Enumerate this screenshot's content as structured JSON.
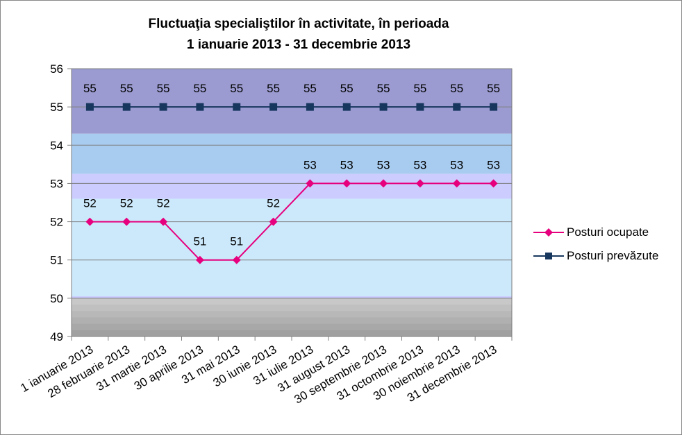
{
  "chart_data": {
    "type": "line",
    "title": "Fluctuaţia specialiştilor în activitate, în perioada",
    "subtitle": "1 ianuarie 2013 - 31 decembrie 2013",
    "categories": [
      "1 ianuarie 2013",
      "28 februarie 2013",
      "31 martie 2013",
      "30 aprilie 2013",
      "31 mai 2013",
      "30 iunie 2013",
      "31 iulie 2013",
      "31 august 2013",
      "30 septembrie 2013",
      "31 octombrie 2013",
      "30 noiembrie 2013",
      "31 decembrie 2013"
    ],
    "series": [
      {
        "name": "Posturi ocupate",
        "values": [
          52,
          52,
          52,
          51,
          51,
          52,
          53,
          53,
          53,
          53,
          53,
          53
        ],
        "color": "#e6007e",
        "marker": "diamond"
      },
      {
        "name": "Posturi prevăzute",
        "values": [
          55,
          55,
          55,
          55,
          55,
          55,
          55,
          55,
          55,
          55,
          55,
          55
        ],
        "color": "#17375e",
        "marker": "square"
      }
    ],
    "ylim": [
      49,
      56
    ],
    "yticks": [
      49,
      50,
      51,
      52,
      53,
      54,
      55,
      56
    ],
    "grid": true,
    "legend_position": "right",
    "data_labels": true,
    "background_bands": [
      {
        "from": 54.3,
        "to": 56,
        "color": "#9b9bd1"
      },
      {
        "from": 53.25,
        "to": 54.3,
        "color": "#a8ccf0"
      },
      {
        "from": 52.6,
        "to": 53.25,
        "color": "#ccccff"
      },
      {
        "from": 50.05,
        "to": 52.6,
        "color": "#cce9fb"
      },
      {
        "from": 50.0,
        "to": 50.05,
        "color": "#c8c8ff"
      },
      {
        "from": 49,
        "to": 50,
        "color": "#b8b8b8"
      }
    ]
  }
}
